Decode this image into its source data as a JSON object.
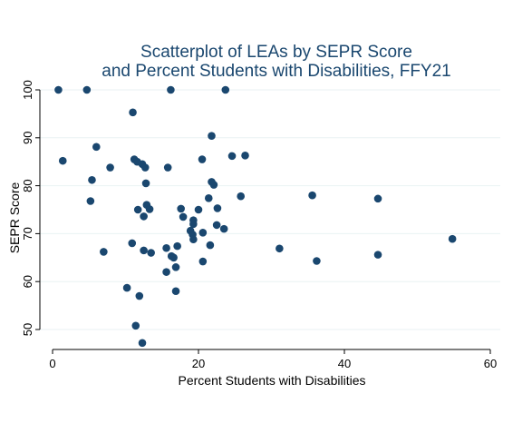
{
  "chart_data": {
    "type": "scatter",
    "title": [
      "Scatterplot of LEAs by SEPR Score",
      "and Percent Students with Disabilities, FFY21"
    ],
    "xlabel": "Percent Students with Disabilities",
    "ylabel": "SEPR Score",
    "xlim": [
      0,
      60
    ],
    "ylim": [
      47,
      100
    ],
    "xticks": [
      0,
      20,
      40,
      60
    ],
    "yticks": [
      50,
      60,
      70,
      80,
      90,
      100
    ],
    "grid": true,
    "marker_color": "#1a476f",
    "points": [
      {
        "x": 0.8,
        "y": 100
      },
      {
        "x": 4.7,
        "y": 100
      },
      {
        "x": 16.2,
        "y": 100
      },
      {
        "x": 23.7,
        "y": 100
      },
      {
        "x": 11.0,
        "y": 95.3
      },
      {
        "x": 21.8,
        "y": 90.4
      },
      {
        "x": 6.0,
        "y": 88.1
      },
      {
        "x": 1.4,
        "y": 85.2
      },
      {
        "x": 11.2,
        "y": 85.5
      },
      {
        "x": 11.6,
        "y": 85.0
      },
      {
        "x": 12.3,
        "y": 84.5
      },
      {
        "x": 12.7,
        "y": 83.8
      },
      {
        "x": 7.9,
        "y": 83.8
      },
      {
        "x": 15.8,
        "y": 83.8
      },
      {
        "x": 20.5,
        "y": 85.5
      },
      {
        "x": 24.6,
        "y": 86.2
      },
      {
        "x": 26.4,
        "y": 86.3
      },
      {
        "x": 5.4,
        "y": 81.2
      },
      {
        "x": 21.8,
        "y": 80.8
      },
      {
        "x": 22.1,
        "y": 80.2
      },
      {
        "x": 12.8,
        "y": 80.5
      },
      {
        "x": 21.4,
        "y": 77.4
      },
      {
        "x": 25.8,
        "y": 77.8
      },
      {
        "x": 35.6,
        "y": 78.0
      },
      {
        "x": 44.6,
        "y": 77.3
      },
      {
        "x": 5.2,
        "y": 76.8
      },
      {
        "x": 12.9,
        "y": 76.0
      },
      {
        "x": 11.7,
        "y": 75.0
      },
      {
        "x": 13.3,
        "y": 75.1
      },
      {
        "x": 17.6,
        "y": 75.2
      },
      {
        "x": 20.0,
        "y": 75.0
      },
      {
        "x": 22.6,
        "y": 75.3
      },
      {
        "x": 12.5,
        "y": 73.6
      },
      {
        "x": 17.9,
        "y": 73.5
      },
      {
        "x": 19.3,
        "y": 72.8
      },
      {
        "x": 19.3,
        "y": 72.0
      },
      {
        "x": 22.5,
        "y": 71.8
      },
      {
        "x": 23.5,
        "y": 71.0
      },
      {
        "x": 18.9,
        "y": 70.6
      },
      {
        "x": 20.6,
        "y": 70.2
      },
      {
        "x": 19.2,
        "y": 69.8
      },
      {
        "x": 19.3,
        "y": 68.8
      },
      {
        "x": 10.9,
        "y": 68.0
      },
      {
        "x": 17.1,
        "y": 67.4
      },
      {
        "x": 21.6,
        "y": 67.6
      },
      {
        "x": 15.6,
        "y": 67.0
      },
      {
        "x": 7.0,
        "y": 66.2
      },
      {
        "x": 12.5,
        "y": 66.5
      },
      {
        "x": 13.5,
        "y": 66.0
      },
      {
        "x": 16.3,
        "y": 65.3
      },
      {
        "x": 16.6,
        "y": 65.0
      },
      {
        "x": 20.6,
        "y": 64.2
      },
      {
        "x": 16.9,
        "y": 63.0
      },
      {
        "x": 15.6,
        "y": 62.0
      },
      {
        "x": 31.1,
        "y": 66.9
      },
      {
        "x": 36.2,
        "y": 64.3
      },
      {
        "x": 44.6,
        "y": 65.6
      },
      {
        "x": 54.8,
        "y": 68.9
      },
      {
        "x": 10.2,
        "y": 58.7
      },
      {
        "x": 16.9,
        "y": 58.0
      },
      {
        "x": 11.9,
        "y": 57.0
      },
      {
        "x": 11.4,
        "y": 50.8
      },
      {
        "x": 12.3,
        "y": 47.2
      }
    ]
  }
}
